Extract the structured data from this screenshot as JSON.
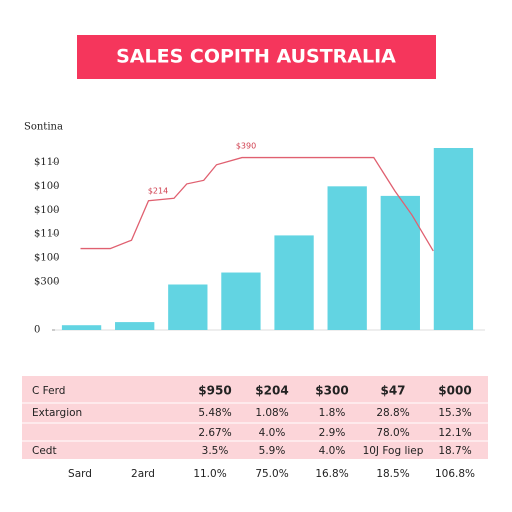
{
  "chart_data": {
    "type": "bar",
    "title": "SALES COPITH AUSTRALIA",
    "subtitle": "Sontina",
    "categories": [
      null,
      null,
      null,
      null,
      null,
      null,
      null,
      null
    ],
    "values": [
      0.2,
      0.33,
      1.9,
      2.4,
      3.95,
      6.0,
      5.6,
      7.6
    ],
    "color": "#62d4e2",
    "ylim": [
      0,
      7.6
    ],
    "yticks": [
      {
        "value": 7,
        "label": "$110"
      },
      {
        "value": 6,
        "label": "$100"
      },
      {
        "value": 5,
        "label": "$100"
      },
      {
        "value": 4,
        "label": "$110"
      },
      {
        "value": 3,
        "label": "$100"
      },
      {
        "value": 2,
        "label": "$300"
      },
      0
    ],
    "line": {
      "color": "#e06070",
      "xlim": [
        0,
        100
      ],
      "x": [
        6,
        13,
        18,
        22,
        28,
        31,
        35,
        38,
        44,
        75,
        80,
        84,
        89
      ],
      "values": [
        3.4,
        3.4,
        3.75,
        5.4,
        5.5,
        6.1,
        6.25,
        6.9,
        7.2,
        7.2,
        5.8,
        4.8,
        3.3
      ]
    },
    "annotations": [
      "$390",
      "$214"
    ]
  },
  "table": {
    "rows": [
      {
        "label": "C Ferd",
        "cells": [
          "$950",
          "$204",
          "$300",
          "$47",
          "$000"
        ]
      },
      {
        "label": "Extargion",
        "cells": [
          "5.48%",
          "1.08%",
          "1.8%",
          "28.8%",
          "15.3%"
        ]
      },
      {
        "cells": [
          "2.67%",
          "4.0%",
          "2.9%",
          "78.0%",
          "12.1%"
        ]
      },
      {
        "label": "Cedt",
        "cells": [
          "3.5%",
          "5.9%",
          "4.0%",
          "10J Fog liep",
          "18.7%"
        ]
      }
    ],
    "footer": [
      "Sard",
      "2ard",
      "11.0%",
      "75.0%",
      "16.8%",
      "18.5%",
      "106.8%"
    ]
  }
}
